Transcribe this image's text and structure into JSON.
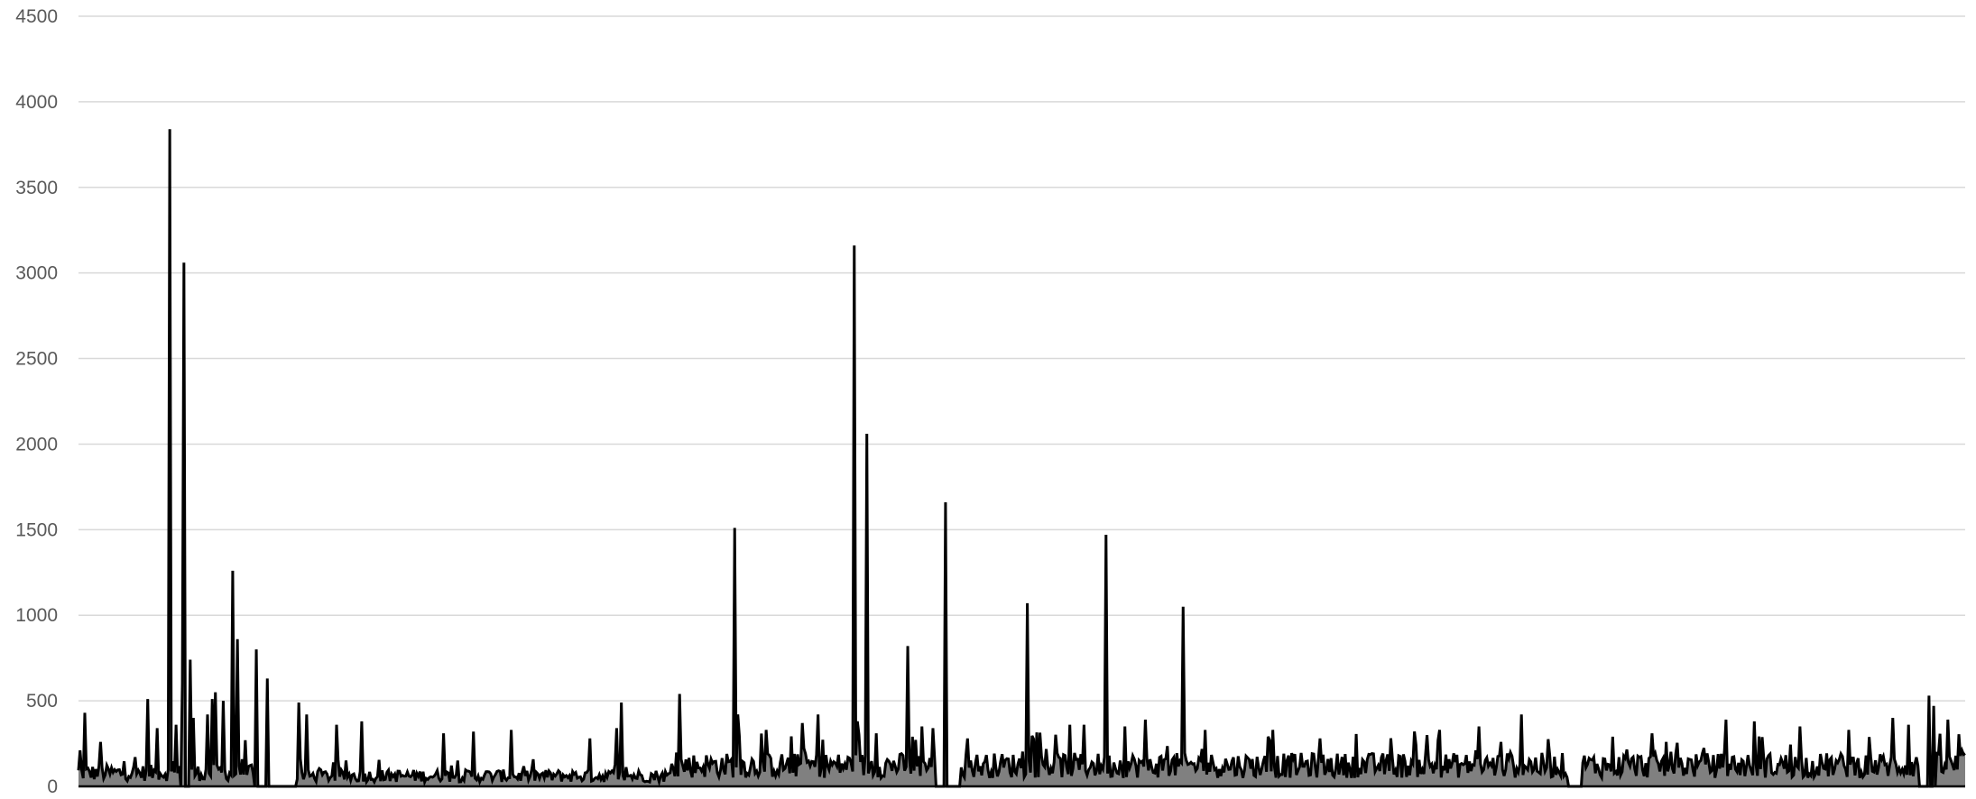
{
  "chart_data": {
    "type": "area",
    "title": "",
    "xlabel": "",
    "ylabel": "",
    "ylim": [
      0,
      4500
    ],
    "yticks": [
      0,
      500,
      1000,
      1500,
      2000,
      2500,
      3000,
      3500,
      4000,
      4500
    ],
    "grid": true,
    "legend": "none",
    "point_count": 1200,
    "baseline": [
      {
        "from": 0,
        "to": 140,
        "level": 90
      },
      {
        "from": 140,
        "to": 380,
        "level": 70
      },
      {
        "from": 380,
        "to": 1200,
        "level": 140
      }
    ],
    "zero_gaps": [
      [
        65,
        70
      ],
      [
        112,
        138
      ],
      [
        545,
        560
      ],
      [
        947,
        955
      ],
      [
        1170,
        1180
      ]
    ],
    "peaks": [
      {
        "x": 1,
        "y": 210
      },
      {
        "x": 4,
        "y": 430
      },
      {
        "x": 14,
        "y": 260
      },
      {
        "x": 44,
        "y": 510
      },
      {
        "x": 50,
        "y": 340
      },
      {
        "x": 58,
        "y": 3840
      },
      {
        "x": 62,
        "y": 360
      },
      {
        "x": 66,
        "y": 600
      },
      {
        "x": 67,
        "y": 3060
      },
      {
        "x": 71,
        "y": 740
      },
      {
        "x": 73,
        "y": 400
      },
      {
        "x": 82,
        "y": 420
      },
      {
        "x": 85,
        "y": 510
      },
      {
        "x": 87,
        "y": 550
      },
      {
        "x": 92,
        "y": 500
      },
      {
        "x": 98,
        "y": 1260
      },
      {
        "x": 101,
        "y": 860
      },
      {
        "x": 106,
        "y": 270
      },
      {
        "x": 113,
        "y": 800
      },
      {
        "x": 120,
        "y": 630
      },
      {
        "x": 140,
        "y": 490
      },
      {
        "x": 145,
        "y": 420
      },
      {
        "x": 164,
        "y": 360
      },
      {
        "x": 180,
        "y": 380
      },
      {
        "x": 232,
        "y": 310
      },
      {
        "x": 251,
        "y": 320
      },
      {
        "x": 275,
        "y": 330
      },
      {
        "x": 325,
        "y": 280
      },
      {
        "x": 342,
        "y": 340
      },
      {
        "x": 345,
        "y": 490
      },
      {
        "x": 382,
        "y": 540
      },
      {
        "x": 417,
        "y": 1510
      },
      {
        "x": 419,
        "y": 420
      },
      {
        "x": 437,
        "y": 330
      },
      {
        "x": 460,
        "y": 370
      },
      {
        "x": 470,
        "y": 420
      },
      {
        "x": 493,
        "y": 3160
      },
      {
        "x": 495,
        "y": 380
      },
      {
        "x": 501,
        "y": 2060
      },
      {
        "x": 507,
        "y": 310
      },
      {
        "x": 527,
        "y": 820
      },
      {
        "x": 530,
        "y": 290
      },
      {
        "x": 536,
        "y": 350
      },
      {
        "x": 543,
        "y": 340
      },
      {
        "x": 551,
        "y": 1660
      },
      {
        "x": 565,
        "y": 280
      },
      {
        "x": 603,
        "y": 1070
      },
      {
        "x": 630,
        "y": 360
      },
      {
        "x": 639,
        "y": 360
      },
      {
        "x": 653,
        "y": 1470
      },
      {
        "x": 665,
        "y": 350
      },
      {
        "x": 678,
        "y": 390
      },
      {
        "x": 702,
        "y": 1050
      },
      {
        "x": 716,
        "y": 330
      },
      {
        "x": 759,
        "y": 330
      },
      {
        "x": 789,
        "y": 280
      },
      {
        "x": 857,
        "y": 300
      },
      {
        "x": 865,
        "y": 330
      },
      {
        "x": 890,
        "y": 350
      },
      {
        "x": 917,
        "y": 420
      },
      {
        "x": 975,
        "y": 290
      },
      {
        "x": 1000,
        "y": 310
      },
      {
        "x": 1047,
        "y": 390
      },
      {
        "x": 1065,
        "y": 380
      },
      {
        "x": 1094,
        "y": 350
      },
      {
        "x": 1125,
        "y": 330
      },
      {
        "x": 1153,
        "y": 400
      },
      {
        "x": 1163,
        "y": 360
      },
      {
        "x": 1176,
        "y": 530
      },
      {
        "x": 1179,
        "y": 470
      },
      {
        "x": 1188,
        "y": 390
      },
      {
        "x": 1197,
        "y": 210
      }
    ],
    "series": [
      {
        "fill_color": "#808080",
        "line_color": "#000000"
      }
    ]
  }
}
